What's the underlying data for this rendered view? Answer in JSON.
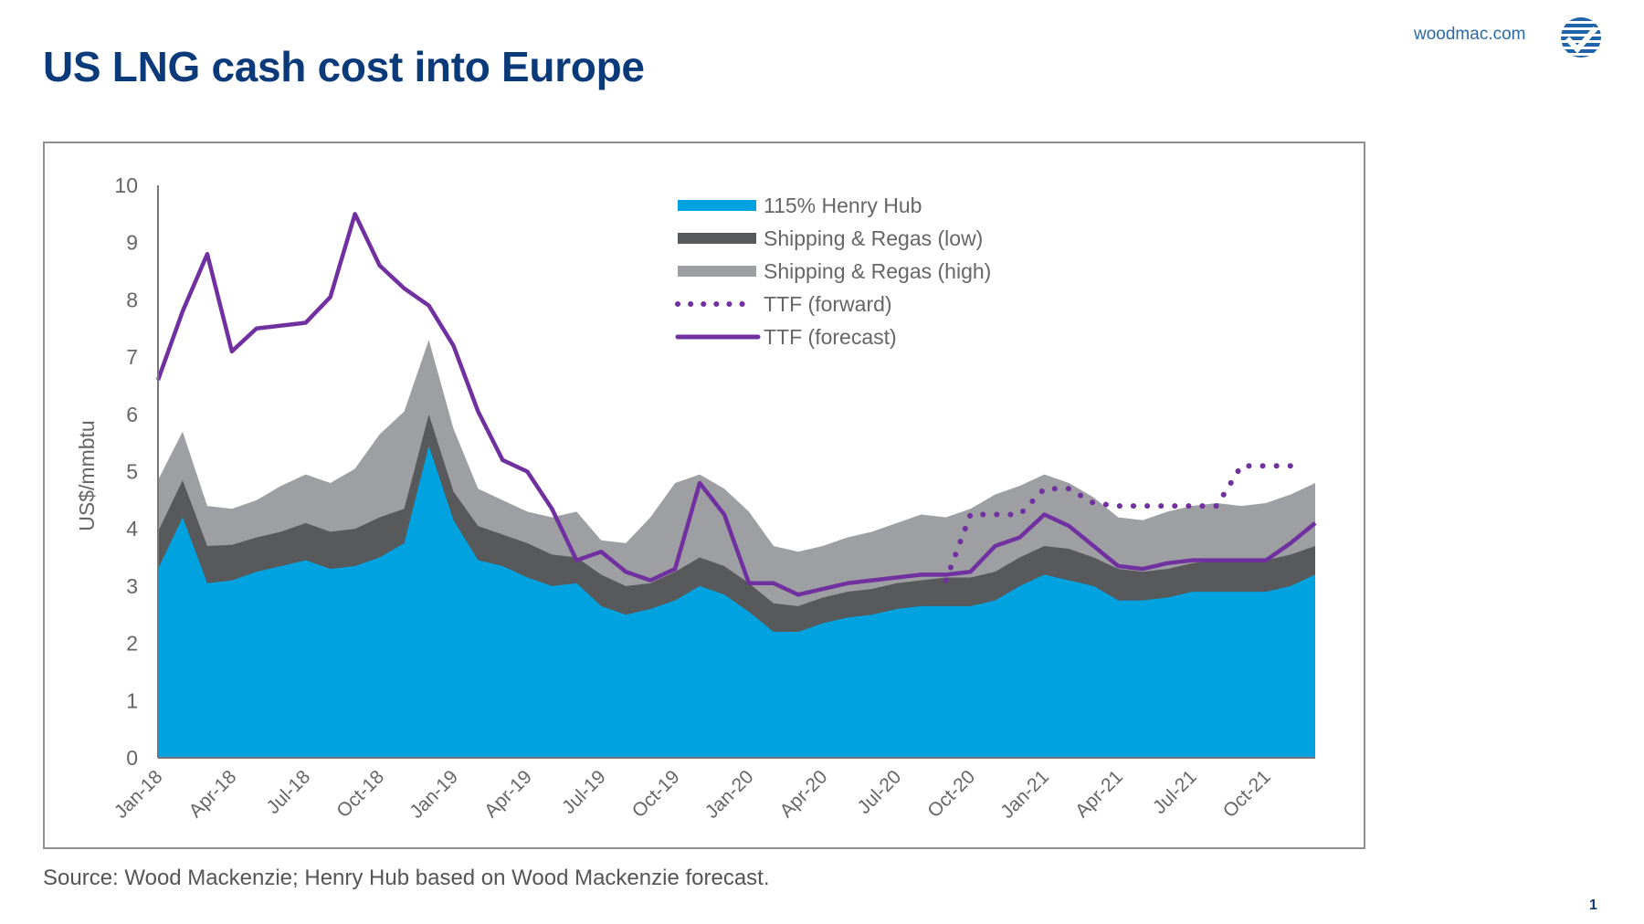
{
  "header": {
    "title": "US LNG cash cost into Europe",
    "site": "woodmac.com",
    "logo_icon": "woodmac-checkmark-globe-icon"
  },
  "footer": {
    "source": "Source: Wood Mackenzie; Henry Hub based on Wood Mackenzie forecast.",
    "page_number": "1"
  },
  "colors": {
    "title": "#0b3a7a",
    "henry_hub": "#00a3e0",
    "shipping_low": "#58595b",
    "shipping_high": "#9d9fa2",
    "ttf": "#7030a0"
  },
  "chart_data": {
    "type": "area",
    "title": "US LNG cash cost into Europe",
    "xlabel": "",
    "ylabel": "US$/mmbtu",
    "ylim": [
      0,
      10
    ],
    "yticks": [
      0,
      1,
      2,
      3,
      4,
      5,
      6,
      7,
      8,
      9,
      10
    ],
    "grid": false,
    "legend_position": "top-center",
    "x": [
      "Jan-18",
      "Feb-18",
      "Mar-18",
      "Apr-18",
      "May-18",
      "Jun-18",
      "Jul-18",
      "Aug-18",
      "Sep-18",
      "Oct-18",
      "Nov-18",
      "Dec-18",
      "Jan-19",
      "Feb-19",
      "Mar-19",
      "Apr-19",
      "May-19",
      "Jun-19",
      "Jul-19",
      "Aug-19",
      "Sep-19",
      "Oct-19",
      "Nov-19",
      "Dec-19",
      "Jan-20",
      "Feb-20",
      "Mar-20",
      "Apr-20",
      "May-20",
      "Jun-20",
      "Jul-20",
      "Aug-20",
      "Sep-20",
      "Oct-20",
      "Nov-20",
      "Dec-20",
      "Jan-21",
      "Feb-21",
      "Mar-21",
      "Apr-21",
      "May-21",
      "Jun-21",
      "Jul-21",
      "Aug-21",
      "Sep-21",
      "Oct-21",
      "Nov-21",
      "Dec-21"
    ],
    "xtick_labels": [
      "Jan-18",
      "Apr-18",
      "Jul-18",
      "Oct-18",
      "Jan-19",
      "Apr-19",
      "Jul-19",
      "Oct-19",
      "Jan-20",
      "Apr-20",
      "Jul-20",
      "Oct-20",
      "Jan-21",
      "Apr-21",
      "Jul-21",
      "Oct-21"
    ],
    "series": [
      {
        "name": "115% Henry Hub",
        "kind": "stacked-area",
        "cumulative_top": [
          3.3,
          4.2,
          3.05,
          3.1,
          3.25,
          3.35,
          3.45,
          3.3,
          3.35,
          3.5,
          3.75,
          5.45,
          4.15,
          3.45,
          3.35,
          3.15,
          3.0,
          3.05,
          2.65,
          2.5,
          2.6,
          2.75,
          3.0,
          2.85,
          2.55,
          2.2,
          2.2,
          2.35,
          2.45,
          2.5,
          2.6,
          2.65,
          2.65,
          2.65,
          2.75,
          3.0,
          3.2,
          3.1,
          3.0,
          2.75,
          2.75,
          2.8,
          2.9,
          2.9,
          2.9,
          2.9,
          3.0,
          3.2
        ]
      },
      {
        "name": "Shipping & Regas (low)",
        "kind": "stacked-area",
        "cumulative_top": [
          3.95,
          4.85,
          3.7,
          3.72,
          3.85,
          3.95,
          4.1,
          3.95,
          4.0,
          4.2,
          4.35,
          6.0,
          4.65,
          4.05,
          3.9,
          3.75,
          3.55,
          3.5,
          3.2,
          3.0,
          3.05,
          3.25,
          3.5,
          3.35,
          3.05,
          2.7,
          2.65,
          2.8,
          2.9,
          2.95,
          3.05,
          3.1,
          3.15,
          3.15,
          3.25,
          3.5,
          3.7,
          3.65,
          3.5,
          3.3,
          3.25,
          3.3,
          3.4,
          3.45,
          3.45,
          3.45,
          3.55,
          3.7
        ]
      },
      {
        "name": "Shipping & Regas (high)",
        "kind": "stacked-area",
        "cumulative_top": [
          4.85,
          5.7,
          4.4,
          4.35,
          4.5,
          4.75,
          4.95,
          4.8,
          5.05,
          5.65,
          6.05,
          7.3,
          5.75,
          4.7,
          4.5,
          4.3,
          4.2,
          4.3,
          3.8,
          3.75,
          4.2,
          4.8,
          4.95,
          4.7,
          4.3,
          3.7,
          3.6,
          3.7,
          3.85,
          3.95,
          4.1,
          4.25,
          4.2,
          4.35,
          4.6,
          4.75,
          4.95,
          4.8,
          4.55,
          4.2,
          4.15,
          4.3,
          4.4,
          4.45,
          4.4,
          4.45,
          4.6,
          4.8
        ]
      },
      {
        "name": "TTF (forward)",
        "kind": "dotted-line",
        "start_index": 32,
        "values": [
          3.1,
          4.25,
          4.25,
          4.25,
          4.7,
          4.7,
          4.45,
          4.4,
          4.4,
          4.4,
          4.4,
          4.4,
          5.1,
          5.1,
          5.1
        ]
      },
      {
        "name": "TTF (forecast)",
        "kind": "line",
        "values": [
          6.6,
          7.8,
          8.8,
          7.1,
          7.5,
          7.55,
          7.6,
          8.05,
          9.5,
          8.6,
          8.2,
          7.9,
          7.2,
          6.05,
          5.2,
          5.0,
          4.35,
          3.45,
          3.6,
          3.25,
          3.1,
          3.3,
          4.8,
          4.25,
          3.05,
          3.05,
          2.85,
          2.95,
          3.05,
          3.1,
          3.15,
          3.2,
          3.2,
          3.25,
          3.7,
          3.85,
          4.25,
          4.05,
          3.7,
          3.35,
          3.3,
          3.4,
          3.45,
          3.45,
          3.45,
          3.45,
          3.75,
          4.1
        ]
      }
    ]
  }
}
